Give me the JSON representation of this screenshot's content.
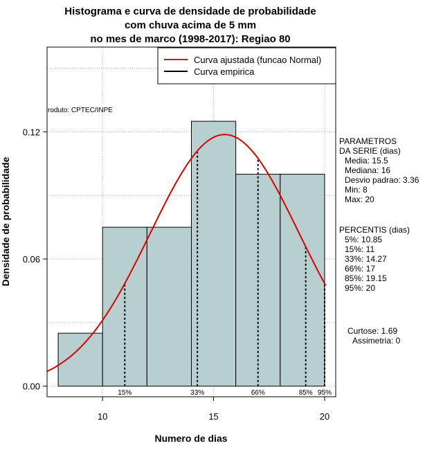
{
  "chart_data": {
    "type": "bar",
    "title_lines": [
      "Histograma e curva de densidade de probabilidade",
      "com chuva acima de 5 mm",
      "no mes de marco (1998-2017): Regiao 80"
    ],
    "xlabel": "Numero de dias",
    "ylabel": "Densidade de probabilidade",
    "xlim": [
      7.5,
      20.5
    ],
    "ylim": [
      -0.005,
      0.16
    ],
    "x_ticks": [
      10,
      15,
      20
    ],
    "y_ticks": [
      0.0,
      0.06,
      0.12
    ],
    "y_tick_labels": [
      "0.00",
      "0.06",
      "0.12"
    ],
    "grid": true,
    "bins": [
      {
        "from": 8,
        "to": 10,
        "density": 0.025
      },
      {
        "from": 10,
        "to": 12,
        "density": 0.075
      },
      {
        "from": 12,
        "to": 14,
        "density": 0.075
      },
      {
        "from": 14,
        "to": 16,
        "density": 0.125
      },
      {
        "from": 16,
        "to": 18,
        "density": 0.1
      },
      {
        "from": 18,
        "to": 20,
        "density": 0.1
      }
    ],
    "bar_color": "#b7cfcf",
    "normal_curve": {
      "mean": 15.5,
      "sd": 3.36,
      "color": "#dd0000"
    },
    "percentile_lines": [
      {
        "label": "15%",
        "x": 11
      },
      {
        "label": "33%",
        "x": 14.27
      },
      {
        "label": "66%",
        "x": 17
      },
      {
        "label": "85%",
        "x": 19.15
      },
      {
        "label": "95%",
        "x": 20
      }
    ],
    "legend": {
      "position": "top-right",
      "entries": [
        {
          "label": "Curva ajustada (funcao Normal)",
          "color": "#dd0000"
        },
        {
          "label": "Curva empirica",
          "color": "#000000"
        }
      ]
    },
    "product_label": "roduto: CPTEC/INPE",
    "parameters": {
      "header": [
        "PARAMETROS",
        "DA SERIE (dias)"
      ],
      "lines": [
        "Media: 15.5",
        "Mediana: 16",
        "Desvio padrao: 3.36",
        "Min: 8",
        "Max: 20"
      ]
    },
    "percentis": {
      "header": "PERCENTIS (dias)",
      "lines": [
        "5%: 10.85",
        "15%: 11",
        "33%: 14.27",
        "66%: 17",
        "85%: 19.15",
        "95%: 20"
      ]
    },
    "shape_stats": [
      "Curtose: 1.69",
      "Assimetria: 0"
    ]
  }
}
